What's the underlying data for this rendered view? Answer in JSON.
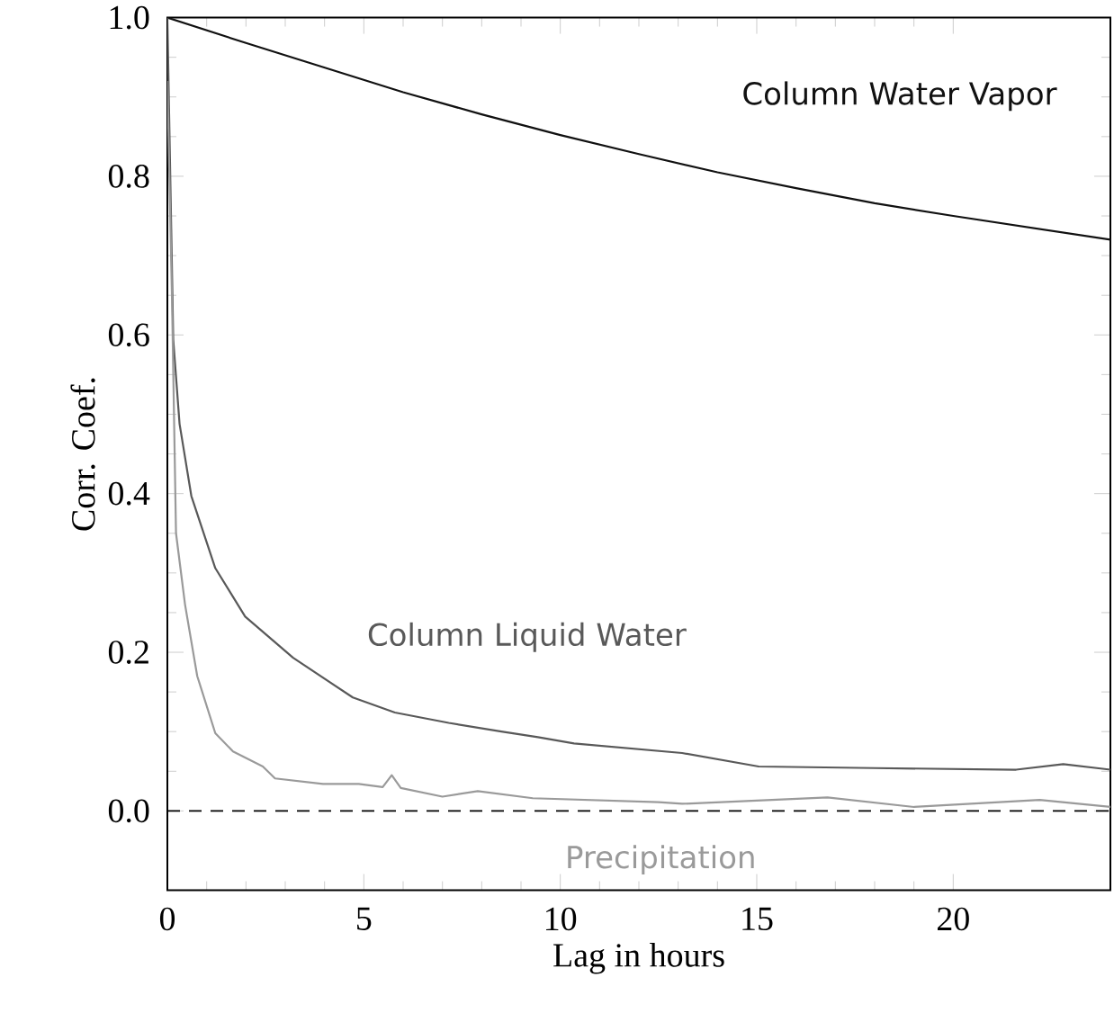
{
  "chart_data": {
    "type": "line",
    "xlabel": "Lag in hours",
    "ylabel": "Corr. Coef.",
    "xlim": [
      0,
      24
    ],
    "ylim": [
      -0.1,
      1.0
    ],
    "xticks": [
      0,
      5,
      10,
      15,
      20
    ],
    "yticks": [
      {
        "value": 0,
        "label": "0.0"
      },
      {
        "value": 0.2,
        "label": "0.2"
      },
      {
        "value": 0.4,
        "label": "0.4"
      },
      {
        "value": 0.6,
        "label": "0.6"
      },
      {
        "value": 0.8,
        "label": "0.8"
      },
      {
        "value": 1.0,
        "label": "1.0"
      }
    ],
    "series": [
      {
        "name": "Column Water Vapor",
        "color": "#111111",
        "x": [
          0,
          2,
          4,
          6,
          8,
          10,
          12,
          14,
          16,
          18,
          20,
          22,
          24
        ],
        "values": [
          1.0,
          0.968,
          0.937,
          0.906,
          0.878,
          0.852,
          0.828,
          0.805,
          0.785,
          0.766,
          0.75,
          0.735,
          0.72
        ]
      },
      {
        "name": "Column Liquid Water",
        "color": "#595959",
        "x": [
          0,
          0.15,
          0.31,
          0.61,
          1.22,
          1.98,
          3.2,
          4.72,
          5.79,
          7.16,
          8.5,
          9.43,
          10.35,
          13.1,
          15.05,
          18,
          21.6,
          22.8,
          24
        ],
        "values": [
          1.0,
          0.594,
          0.488,
          0.397,
          0.306,
          0.245,
          0.193,
          0.143,
          0.124,
          0.111,
          0.1,
          0.093,
          0.085,
          0.073,
          0.056,
          0.054,
          0.052,
          0.059,
          0.052
        ]
      },
      {
        "name": "Precipitation",
        "color": "#9a9a9a",
        "x": [
          0,
          0.12,
          0.22,
          0.45,
          0.76,
          1.22,
          1.67,
          2.43,
          2.74,
          3.96,
          4.87,
          5.48,
          5.71,
          5.94,
          7.0,
          7.9,
          9.3,
          12.5,
          13.1,
          16.8,
          19,
          22.2,
          24
        ],
        "values": [
          0.92,
          0.64,
          0.35,
          0.26,
          0.17,
          0.098,
          0.075,
          0.056,
          0.041,
          0.034,
          0.034,
          0.03,
          0.045,
          0.029,
          0.018,
          0.025,
          0.016,
          0.011,
          0.009,
          0.017,
          0.005,
          0.014,
          0.005
        ]
      }
    ],
    "ref_lines": [
      {
        "axis": "y",
        "value": 0,
        "line_style": "dashed",
        "color": "#000000"
      }
    ],
    "grid": false,
    "marker": "none",
    "line_style": "solid"
  }
}
